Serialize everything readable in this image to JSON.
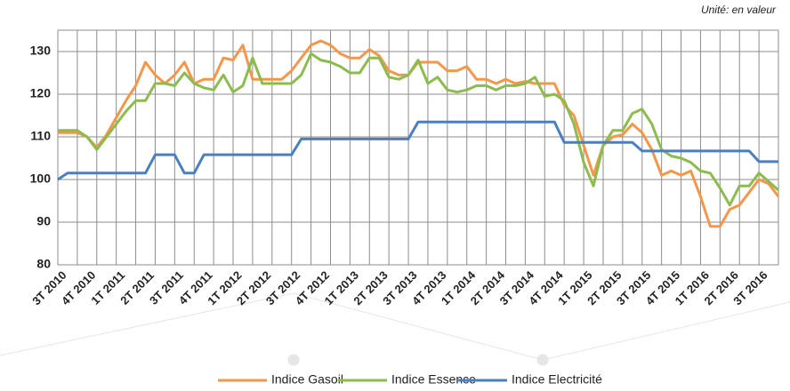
{
  "chart_data": {
    "type": "line",
    "annotation": "Unité: en valeur",
    "categories": [
      "3T 2010",
      null,
      null,
      "4T 2010",
      null,
      null,
      "1T 2011",
      null,
      null,
      "2T 2011",
      null,
      null,
      "3T 2011",
      null,
      null,
      "4T 2011",
      null,
      null,
      "1T 2012",
      null,
      null,
      "2T 2012",
      null,
      null,
      "3T 2012",
      null,
      null,
      "4T 2012",
      null,
      null,
      "1T 2013",
      null,
      null,
      "2T 2013",
      null,
      null,
      "3T 2013",
      null,
      null,
      "4T 2013",
      null,
      null,
      "1T 2014",
      null,
      null,
      "2T 2014",
      null,
      null,
      "3T 2014",
      null,
      null,
      "4T 2014",
      null,
      null,
      "1T 2015",
      null,
      null,
      "2T 2015",
      null,
      null,
      "3T 2015",
      null,
      null,
      "4T 2015",
      null,
      null,
      "1T 2016",
      null,
      null,
      "2T 2016",
      null,
      null,
      "3T 2016",
      null,
      null
    ],
    "series": [
      {
        "name": "Indice Gasoil",
        "color": "#f4974a",
        "values": [
          111,
          111,
          111,
          110,
          107.5,
          110.5,
          114.5,
          118.5,
          122,
          127.5,
          124.5,
          122.5,
          124.5,
          127.5,
          122.5,
          123.5,
          123.5,
          128.5,
          128,
          131.5,
          123.5,
          123.5,
          123.5,
          123.5,
          125.5,
          128.5,
          131.5,
          132.5,
          131.5,
          129.5,
          128.5,
          128.5,
          130.5,
          129,
          125.5,
          124.5,
          124.5,
          127.5,
          127.5,
          127.5,
          125.5,
          125.5,
          126.5,
          123.5,
          123.5,
          122.5,
          123.5,
          122.5,
          123,
          122.5,
          122.5,
          122.5,
          117.5,
          115,
          108,
          101,
          108,
          110,
          110.5,
          113,
          111,
          107,
          101,
          102,
          101,
          102,
          96,
          89,
          89,
          93,
          94,
          97,
          100,
          99,
          96
        ]
      },
      {
        "name": "Indice Essence",
        "color": "#8cbb4e",
        "values": [
          111.5,
          111.5,
          111.5,
          110,
          107,
          110,
          113,
          116,
          118.5,
          118.5,
          122.5,
          122.5,
          122,
          125,
          122.5,
          121.5,
          121,
          124.5,
          120.5,
          122,
          128.5,
          122.5,
          122.5,
          122.5,
          122.5,
          124.5,
          129.5,
          128,
          127.5,
          126.5,
          125,
          125,
          128.5,
          128.5,
          124,
          123.5,
          124.5,
          128,
          122.5,
          124,
          121,
          120.5,
          121,
          122,
          122,
          121,
          122,
          122,
          122.5,
          124,
          119.5,
          120,
          118.5,
          113,
          104,
          98.5,
          108,
          111.5,
          111.5,
          115.5,
          116.5,
          113,
          107,
          105.5,
          105,
          104,
          102,
          101.5,
          98,
          94,
          98.5,
          98.5,
          101.5,
          99.5,
          97.5
        ]
      },
      {
        "name": "Indice Electricité",
        "color": "#4a7fc1",
        "values": [
          100,
          101.5,
          101.5,
          101.5,
          101.5,
          101.5,
          101.5,
          101.5,
          101.5,
          101.5,
          105.8,
          105.8,
          105.8,
          101.5,
          101.5,
          105.8,
          105.8,
          105.8,
          105.8,
          105.8,
          105.8,
          105.8,
          105.8,
          105.8,
          105.8,
          109.5,
          109.5,
          109.5,
          109.5,
          109.5,
          109.5,
          109.5,
          109.5,
          109.5,
          109.5,
          109.5,
          109.5,
          113.5,
          113.5,
          113.5,
          113.5,
          113.5,
          113.5,
          113.5,
          113.5,
          113.5,
          113.5,
          113.5,
          113.5,
          113.5,
          113.5,
          113.5,
          108.7,
          108.7,
          108.7,
          108.7,
          108.7,
          108.7,
          108.7,
          108.7,
          106.7,
          106.7,
          106.7,
          106.7,
          106.7,
          106.7,
          106.7,
          106.7,
          106.7,
          106.7,
          106.7,
          106.7,
          104.2,
          104.2,
          104.2
        ]
      }
    ],
    "ylim": [
      80,
      135
    ],
    "yticks": [
      80,
      90,
      100,
      110,
      120,
      130
    ],
    "grid": true
  }
}
